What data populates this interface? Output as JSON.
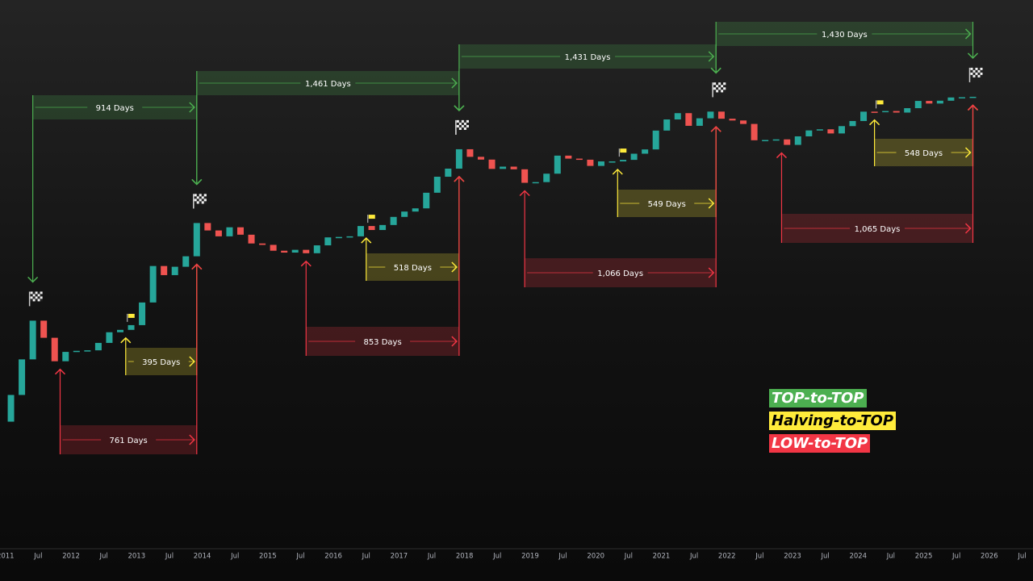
{
  "chart_data": {
    "type": "candlestick",
    "x": [
      "2011-01",
      "2011-03",
      "2011-05",
      "2011-07",
      "2011-09",
      "2011-11",
      "2012-01",
      "2012-03",
      "2012-05",
      "2012-07",
      "2012-09",
      "2012-11",
      "2013-01",
      "2013-03",
      "2013-05",
      "2013-07",
      "2013-09",
      "2013-11",
      "2014-01",
      "2014-03",
      "2014-05",
      "2014-07",
      "2014-09",
      "2014-11",
      "2015-01",
      "2015-03",
      "2015-05",
      "2015-07",
      "2015-09",
      "2015-11",
      "2016-01",
      "2016-03",
      "2016-05",
      "2016-07",
      "2016-09",
      "2016-11",
      "2017-01",
      "2017-03",
      "2017-05",
      "2017-07",
      "2017-09",
      "2017-11",
      "2018-01",
      "2018-03",
      "2018-05",
      "2018-07",
      "2018-09",
      "2018-11",
      "2019-01",
      "2019-03",
      "2019-05",
      "2019-07",
      "2019-09",
      "2019-11",
      "2020-01",
      "2020-03",
      "2020-05",
      "2020-07",
      "2020-09",
      "2020-11",
      "2021-01",
      "2021-03",
      "2021-05",
      "2021-07",
      "2021-09",
      "2021-11",
      "2022-01",
      "2022-03",
      "2022-05",
      "2022-07",
      "2022-09",
      "2022-11",
      "2023-01",
      "2023-03",
      "2023-05",
      "2023-07",
      "2023-09",
      "2023-11",
      "2024-01",
      "2024-03",
      "2024-05",
      "2024-07",
      "2024-09",
      "2024-11",
      "2025-01",
      "2025-03",
      "2025-05",
      "2025-07",
      "2025-09"
    ],
    "open": [
      0.3,
      0.86,
      3.5,
      16.1,
      8.2,
      3.25,
      4.7,
      4.9,
      5.0,
      6.7,
      10.2,
      11.2,
      13.5,
      33,
      139,
      97,
      135,
      204,
      757,
      565,
      448,
      640,
      478,
      338,
      320,
      254,
      236,
      263,
      230,
      314,
      430,
      437,
      448,
      673,
      575,
      700,
      964,
      1190,
      1350,
      2500,
      4700,
      6470,
      13900,
      10300,
      9240,
      6400,
      7000,
      6300,
      3700,
      3800,
      5300,
      10800,
      9600,
      9200,
      7200,
      8600,
      8600,
      9140,
      11650,
      13800,
      29000,
      45000,
      57700,
      35000,
      47100,
      61300,
      46300,
      43200,
      37700,
      19800,
      20000,
      20500,
      16500,
      23100,
      29200,
      30500,
      25900,
      34600,
      42300,
      61200,
      60600,
      62700,
      59000,
      70200,
      93400,
      84300,
      94200,
      107100,
      108200
    ],
    "close": [
      0.86,
      3.5,
      16.1,
      8.2,
      3.25,
      4.7,
      4.9,
      5.0,
      6.7,
      10.2,
      11.2,
      13.5,
      33,
      139,
      97,
      135,
      204,
      757,
      565,
      448,
      640,
      478,
      338,
      320,
      254,
      236,
      263,
      230,
      314,
      430,
      437,
      448,
      673,
      575,
      700,
      964,
      1190,
      1350,
      2500,
      4700,
      6470,
      13900,
      10300,
      9240,
      6400,
      7000,
      6300,
      3700,
      3800,
      5300,
      10800,
      9600,
      9200,
      7200,
      8600,
      8600,
      9140,
      11650,
      13800,
      29000,
      45000,
      57700,
      35000,
      47100,
      61300,
      46300,
      43200,
      37700,
      19800,
      20000,
      20500,
      16500,
      23100,
      29200,
      30500,
      25900,
      34600,
      42300,
      61200,
      60600,
      62700,
      59000,
      70200,
      93400,
      84300,
      94200,
      107100,
      108200,
      110000
    ],
    "up_color": "#26a69a",
    "down_color": "#ef5350",
    "log_scale": true,
    "ylim": [
      0.002,
      5000000
    ],
    "xlim": [
      "2010-12",
      "2026-09"
    ],
    "xticks": [
      {
        "value": "2011-01",
        "label": "2011"
      },
      {
        "value": "2011-07",
        "label": "Jul"
      },
      {
        "value": "2012-01",
        "label": "2012"
      },
      {
        "value": "2012-07",
        "label": "Jul"
      },
      {
        "value": "2013-01",
        "label": "2013"
      },
      {
        "value": "2013-07",
        "label": "Jul"
      },
      {
        "value": "2014-01",
        "label": "2014"
      },
      {
        "value": "2014-07",
        "label": "Jul"
      },
      {
        "value": "2015-01",
        "label": "2015"
      },
      {
        "value": "2015-07",
        "label": "Jul"
      },
      {
        "value": "2016-01",
        "label": "2016"
      },
      {
        "value": "2016-07",
        "label": "Jul"
      },
      {
        "value": "2017-01",
        "label": "2017"
      },
      {
        "value": "2017-07",
        "label": "Jul"
      },
      {
        "value": "2018-01",
        "label": "2018"
      },
      {
        "value": "2018-07",
        "label": "Jul"
      },
      {
        "value": "2019-01",
        "label": "2019"
      },
      {
        "value": "2019-07",
        "label": "Jul"
      },
      {
        "value": "2020-01",
        "label": "2020"
      },
      {
        "value": "2020-07",
        "label": "Jul"
      },
      {
        "value": "2021-01",
        "label": "2021"
      },
      {
        "value": "2021-07",
        "label": "Jul"
      },
      {
        "value": "2022-01",
        "label": "2022"
      },
      {
        "value": "2022-07",
        "label": "Jul"
      },
      {
        "value": "2023-01",
        "label": "2023"
      },
      {
        "value": "2023-07",
        "label": "Jul"
      },
      {
        "value": "2024-01",
        "label": "2024"
      },
      {
        "value": "2024-07",
        "label": "Jul"
      },
      {
        "value": "2025-01",
        "label": "2025"
      },
      {
        "value": "2025-07",
        "label": "Jul"
      },
      {
        "value": "2026-01",
        "label": "2026"
      },
      {
        "value": "2026-07",
        "label": "Jul"
      }
    ],
    "spans": [
      {
        "name": "TOP-to-TOP",
        "color": "#4caf50",
        "label_color": "#ffffff",
        "ranges": [
          {
            "label": "914 Days",
            "from": "2011-06",
            "to": "2013-12"
          },
          {
            "label": "1,461 Days",
            "from": "2013-12",
            "to": "2017-12"
          },
          {
            "label": "1,431 Days",
            "from": "2017-12",
            "to": "2021-11"
          },
          {
            "label": "1,430 Days",
            "from": "2021-11",
            "to": "2025-10"
          }
        ]
      },
      {
        "name": "Halving-to-TOP",
        "color": "#ffeb3b",
        "label_color": "#000000",
        "ranges": [
          {
            "label": "395 Days",
            "from": "2012-11",
            "to": "2013-12"
          },
          {
            "label": "518 Days",
            "from": "2016-07",
            "to": "2017-12"
          },
          {
            "label": "549 Days",
            "from": "2020-05",
            "to": "2021-11"
          },
          {
            "label": "548 Days",
            "from": "2024-04",
            "to": "2025-10"
          }
        ]
      },
      {
        "name": "LOW-to-TOP",
        "color": "#f23645",
        "label_color": "#ffffff",
        "ranges": [
          {
            "label": "761 Days",
            "from": "2011-11",
            "to": "2013-12"
          },
          {
            "label": "853 Days",
            "from": "2015-08",
            "to": "2017-12"
          },
          {
            "label": "1,066 Days",
            "from": "2018-12",
            "to": "2021-11"
          },
          {
            "label": "1,065 Days",
            "from": "2022-11",
            "to": "2025-10"
          }
        ]
      }
    ]
  }
}
